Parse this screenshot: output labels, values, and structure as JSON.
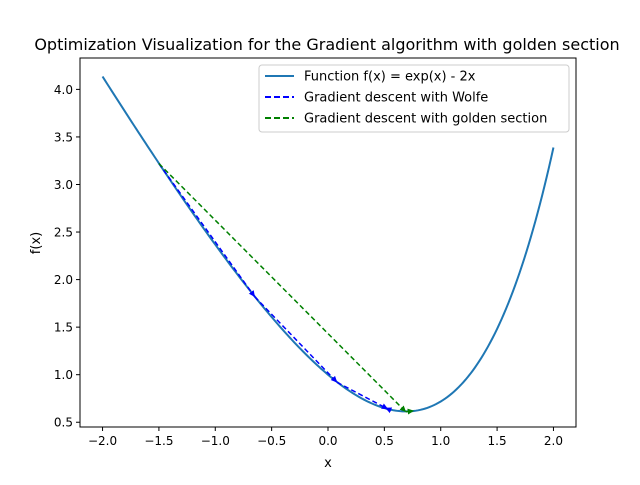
{
  "chart_data": {
    "type": "line",
    "title": "Optimization Visualization for the Gradient algorithm with golden section",
    "xlabel": "x",
    "ylabel": "f(x)",
    "xlim": [
      -2.2,
      2.2
    ],
    "ylim": [
      0.45,
      4.33
    ],
    "xticks": [
      -2.0,
      -1.5,
      -1.0,
      -0.5,
      0.0,
      0.5,
      1.0,
      1.5,
      2.0
    ],
    "xtick_labels": [
      "−2.0",
      "−1.5",
      "−1.0",
      "−0.5",
      "0.0",
      "0.5",
      "1.0",
      "1.5",
      "2.0"
    ],
    "yticks": [
      0.5,
      1.0,
      1.5,
      2.0,
      2.5,
      3.0,
      3.5,
      4.0
    ],
    "ytick_labels": [
      "0.5",
      "1.0",
      "1.5",
      "2.0",
      "2.5",
      "3.0",
      "3.5",
      "4.0"
    ],
    "grid": false,
    "legend_position": "top-right",
    "series": [
      {
        "name": "Function f(x) = exp(x) - 2x",
        "kind": "function",
        "expression": "exp(x) - 2x",
        "x_range": [
          -2.0,
          2.0
        ],
        "color": "#1f77b4",
        "style": "solid"
      },
      {
        "name": "Gradient descent with Wolfe",
        "kind": "steps",
        "color": "#0000ff",
        "style": "dashed",
        "points": [
          {
            "x": -1.5,
            "y": 3.22
          },
          {
            "x": -0.65,
            "y": 1.82
          },
          {
            "x": 0.08,
            "y": 0.92
          },
          {
            "x": 0.53,
            "y": 0.64
          },
          {
            "x": 0.51,
            "y": 0.65
          }
        ]
      },
      {
        "name": "Gradient descent with golden section",
        "kind": "steps",
        "color": "#008000",
        "style": "dashed",
        "points": [
          {
            "x": -1.5,
            "y": 3.22
          },
          {
            "x": 0.69,
            "y": 0.61
          },
          {
            "x": 0.76,
            "y": 0.62
          }
        ]
      }
    ]
  }
}
